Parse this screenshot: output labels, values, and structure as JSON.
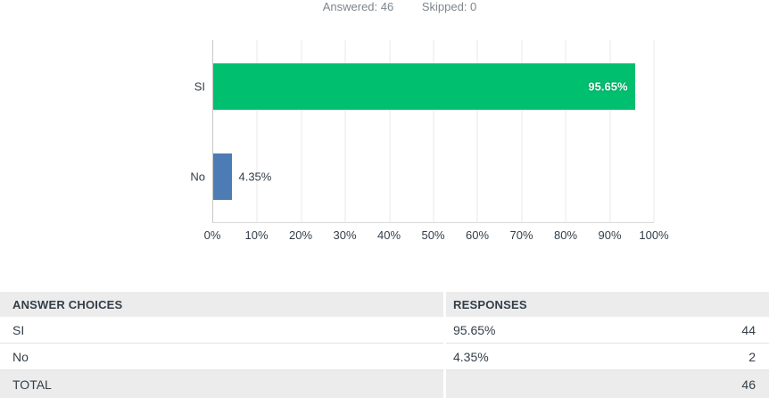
{
  "header": {
    "answered_label": "Answered: 46",
    "skipped_label": "Skipped: 0"
  },
  "chart_data": {
    "type": "bar",
    "orientation": "horizontal",
    "title": "",
    "categories": [
      "SI",
      "No"
    ],
    "values": [
      95.65,
      4.35
    ],
    "value_labels": [
      "95.65%",
      "4.35%"
    ],
    "colors": [
      "#00BF6F",
      "#4D7CB4"
    ],
    "x_ticks": [
      "0%",
      "10%",
      "20%",
      "30%",
      "40%",
      "50%",
      "60%",
      "70%",
      "80%",
      "90%",
      "100%"
    ],
    "xlim": [
      0,
      100
    ],
    "grid": "vertical",
    "legend": "none"
  },
  "table": {
    "headers": [
      "ANSWER CHOICES",
      "RESPONSES"
    ],
    "rows": [
      {
        "choice": "SI",
        "percent": "95.65%",
        "count": "44"
      },
      {
        "choice": "No",
        "percent": "4.35%",
        "count": "2"
      }
    ],
    "total": {
      "label": "TOTAL",
      "count": "46"
    }
  },
  "colors": {
    "bar_green": "#00BF6F",
    "bar_blue": "#4D7CB4",
    "table_header_bg": "#ECECEC",
    "text_dark": "#333E48",
    "text_gray": "#7E858C"
  }
}
